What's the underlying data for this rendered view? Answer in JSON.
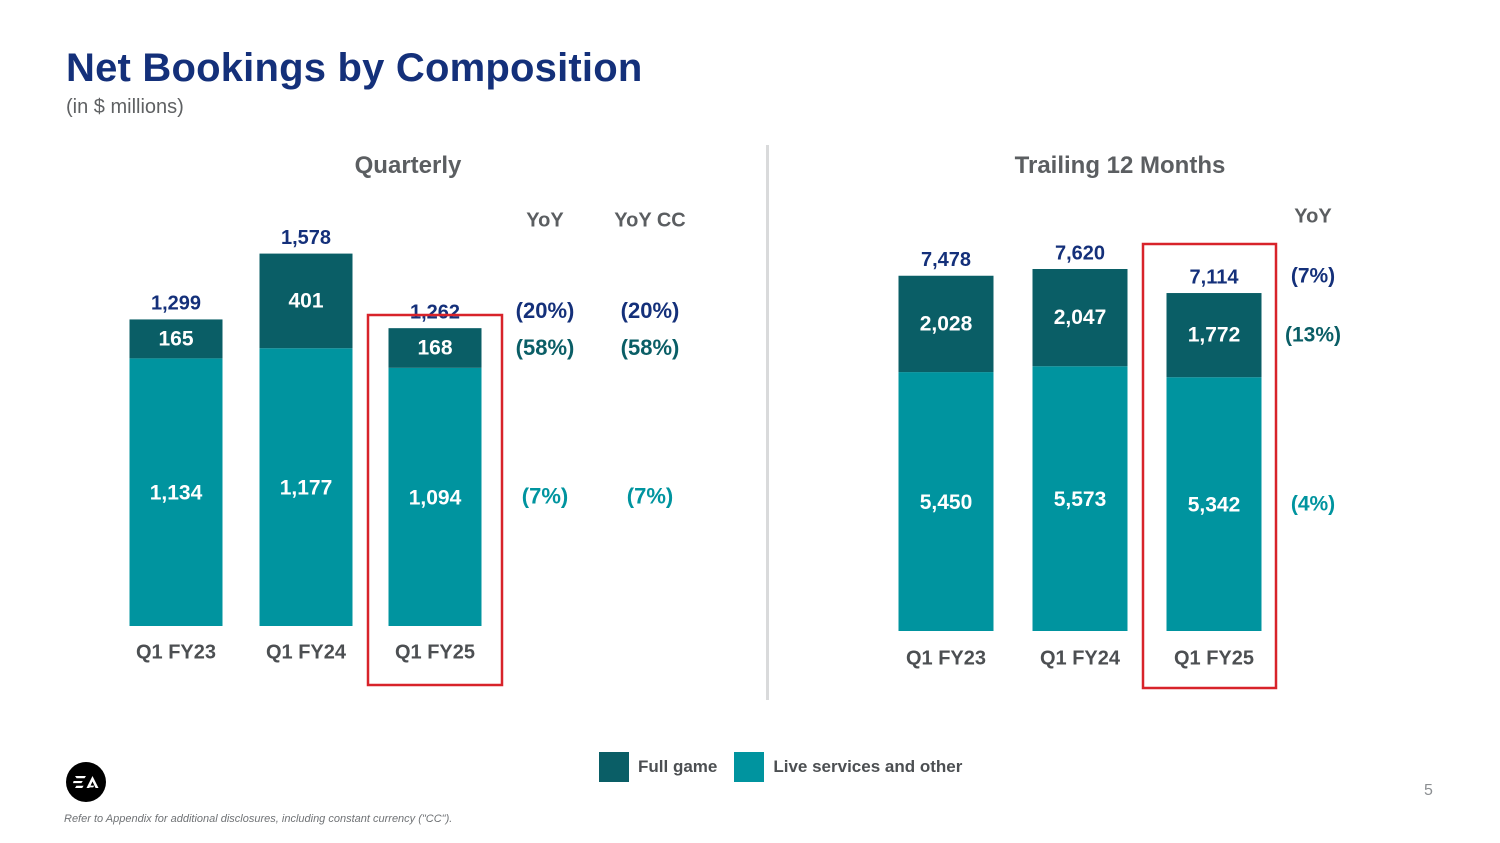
{
  "slide": {
    "title": "Net Bookings by Composition",
    "subtitle": "(in $ millions)",
    "page_number": "5",
    "footnote": "Refer to Appendix for additional disclosures, including constant currency (\"CC\").",
    "logo_text": "EA"
  },
  "legend": {
    "full_game": "Full game",
    "live_services": "Live services and other"
  },
  "colors": {
    "full_game": "#0a5e66",
    "live_services": "#00949f",
    "total_label": "#14307a",
    "highlight_box": "#d8232a",
    "yoy_total": "#14307a",
    "yoy_full_game": "#0a5e66",
    "yoy_live": "#00949f"
  },
  "chart_data": [
    {
      "type": "bar",
      "stacked": true,
      "title": "Quarterly",
      "categories": [
        "Q1 FY23",
        "Q1 FY24",
        "Q1 FY25"
      ],
      "series": [
        {
          "name": "Live services and other",
          "values": [
            1134,
            1177,
            1094
          ],
          "labels": [
            "1,134",
            "1,177",
            "1,094"
          ]
        },
        {
          "name": "Full game",
          "values": [
            165,
            401,
            168
          ],
          "labels": [
            "165",
            "401",
            "168"
          ]
        }
      ],
      "totals": [
        1299,
        1578,
        1262
      ],
      "total_labels": [
        "1,299",
        "1,578",
        "1,262"
      ],
      "highlighted_category": "Q1 FY25",
      "yoy_columns": [
        {
          "header": "YoY",
          "total": "(20%)",
          "full_game": "(58%)",
          "live_services": "(7%)"
        },
        {
          "header": "YoY CC",
          "total": "(20%)",
          "full_game": "(58%)",
          "live_services": "(7%)"
        }
      ]
    },
    {
      "type": "bar",
      "stacked": true,
      "title": "Trailing 12 Months",
      "categories": [
        "Q1 FY23",
        "Q1 FY24",
        "Q1 FY25"
      ],
      "series": [
        {
          "name": "Live services and other",
          "values": [
            5450,
            5573,
            5342
          ],
          "labels": [
            "5,450",
            "5,573",
            "5,342"
          ]
        },
        {
          "name": "Full game",
          "values": [
            2028,
            2047,
            1772
          ],
          "labels": [
            "2,028",
            "2,047",
            "1,772"
          ]
        }
      ],
      "totals": [
        7478,
        7620,
        7114
      ],
      "total_labels": [
        "7,478",
        "7,620",
        "7,114"
      ],
      "highlighted_category": "Q1 FY25",
      "yoy_columns": [
        {
          "header": "YoY",
          "total": "(7%)",
          "full_game": "(13%)",
          "live_services": "(4%)"
        }
      ]
    }
  ]
}
